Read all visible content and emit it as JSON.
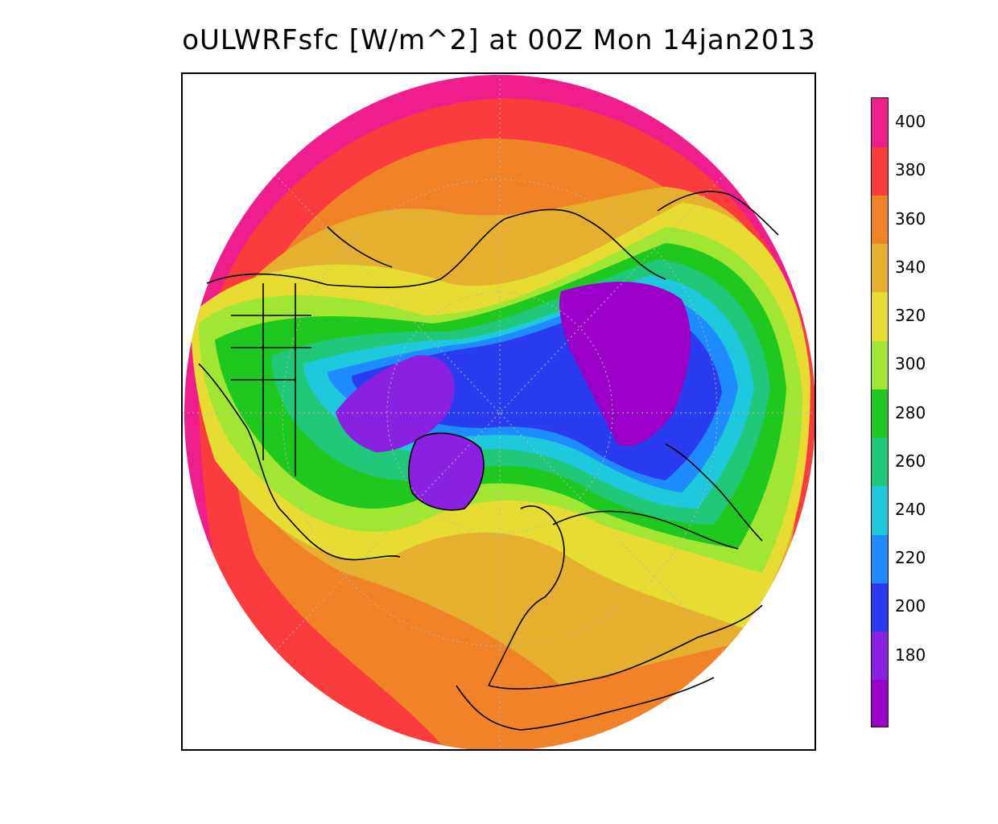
{
  "title": "oULWRFsfc [W/m^2] at 00Z Mon 14jan2013",
  "map": {
    "projection": "north-polar-stereographic",
    "coastline_color": "#000000",
    "gridline_color": "#b8b8b8"
  },
  "colorbar": {
    "levels": [
      {
        "label": "",
        "color": "#9a00c8"
      },
      {
        "label": "180",
        "color": "#8a20e0"
      },
      {
        "label": "200",
        "color": "#2a3cf0"
      },
      {
        "label": "220",
        "color": "#1e8cff"
      },
      {
        "label": "240",
        "color": "#1ec8dc"
      },
      {
        "label": "260",
        "color": "#1ec878"
      },
      {
        "label": "280",
        "color": "#1ec81e"
      },
      {
        "label": "300",
        "color": "#a0e632"
      },
      {
        "label": "320",
        "color": "#e6dc32"
      },
      {
        "label": "340",
        "color": "#e6af2d"
      },
      {
        "label": "360",
        "color": "#f08228"
      },
      {
        "label": "380",
        "color": "#fa3c3c"
      },
      {
        "label": "400",
        "color": "#f01e8c"
      }
    ]
  }
}
